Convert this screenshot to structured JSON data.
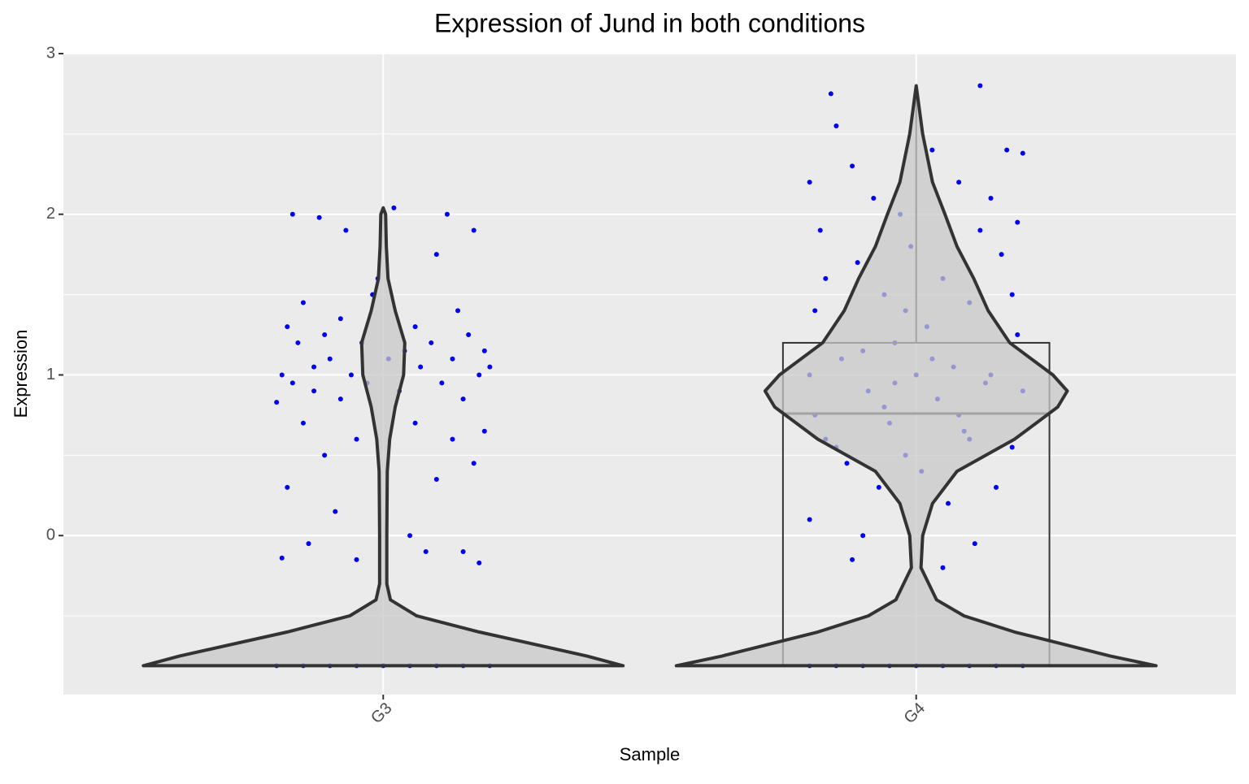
{
  "chart_data": {
    "type": "violin",
    "title": "Expression of Jund in both conditions",
    "x_label": "Sample",
    "y_label": "Expression",
    "categories": [
      "G3",
      "G4"
    ],
    "ylim": [
      -0.99,
      3.0
    ],
    "yticks": [
      0,
      1,
      2,
      3
    ],
    "minor_yticks": [
      -0.5,
      0.5,
      1.5,
      2.5
    ],
    "grid": true,
    "point_color": "#0000ee",
    "violin_fill": "#c8c8c8",
    "violin_stroke": "#333333",
    "violins": [
      {
        "y": [
          -0.81,
          -0.75,
          -0.6,
          -0.5,
          -0.4,
          -0.3,
          0,
          0.4,
          0.6,
          0.8,
          1.0,
          1.2,
          1.4,
          1.6,
          1.8,
          2.0,
          2.04
        ],
        "width": [
          1,
          0.85,
          0.4,
          0.14,
          0.03,
          0.015,
          0.015,
          0.017,
          0.027,
          0.05,
          0.085,
          0.09,
          0.05,
          0.02,
          0.013,
          0.01,
          0
        ]
      },
      {
        "y": [
          -0.81,
          -0.75,
          -0.6,
          -0.5,
          -0.4,
          -0.2,
          0,
          0.2,
          0.4,
          0.6,
          0.8,
          0.9,
          1.0,
          1.2,
          1.4,
          1.6,
          1.8,
          2.0,
          2.2,
          2.5,
          2.8
        ],
        "width": [
          1,
          0.81,
          0.41,
          0.2,
          0.085,
          0.02,
          0.027,
          0.068,
          0.17,
          0.41,
          0.59,
          0.63,
          0.57,
          0.39,
          0.3,
          0.24,
          0.17,
          0.12,
          0.068,
          0.027,
          0
        ]
      }
    ],
    "boxes": [
      {
        "q1": -0.81,
        "median": -0.81,
        "q3": -0.81,
        "whisker_high": null
      },
      {
        "q1": -0.81,
        "median": 0.76,
        "q3": 1.2,
        "whisker_high": 2.78
      }
    ],
    "points": [
      {
        "dx": [
          -0.2,
          -0.19,
          -0.19,
          -0.18,
          -0.18,
          -0.17,
          -0.17,
          -0.16,
          -0.15,
          -0.15,
          -0.14,
          -0.13,
          -0.13,
          -0.12,
          -0.11,
          -0.11,
          -0.1,
          -0.09,
          -0.08,
          -0.08,
          -0.07,
          -0.06,
          -0.05,
          -0.05,
          -0.04,
          -0.03,
          -0.02,
          0.02,
          0.03,
          0.04,
          0.05,
          0.06,
          0.06,
          0.07,
          0.08,
          0.09,
          0.1,
          0.1,
          0.11,
          0.12,
          0.13,
          0.13,
          0.14,
          0.15,
          0.15,
          0.16,
          0.17,
          0.17,
          0.18,
          0.19,
          0.19,
          0.2,
          0.18,
          -0.01,
          0.01,
          -0.2,
          -0.15,
          -0.1,
          -0.05,
          0,
          0.05,
          0.1,
          0.15,
          0.2
        ],
        "y": [
          0.83,
          1.0,
          -0.14,
          1.3,
          0.3,
          2.0,
          0.95,
          1.2,
          0.7,
          1.45,
          -0.05,
          1.05,
          0.9,
          1.98,
          1.25,
          0.5,
          1.1,
          0.15,
          0.85,
          1.35,
          1.9,
          1.0,
          0.6,
          -0.15,
          1.2,
          0.95,
          1.5,
          2.04,
          0.9,
          1.15,
          0.0,
          1.3,
          0.7,
          1.05,
          -0.1,
          1.2,
          0.35,
          1.75,
          0.95,
          2.0,
          1.1,
          0.6,
          1.4,
          -0.1,
          0.85,
          1.25,
          1.9,
          0.45,
          1.0,
          1.15,
          0.65,
          1.05,
          -0.17,
          1.6,
          1.1,
          -0.81,
          -0.81,
          -0.81,
          -0.81,
          -0.81,
          -0.81,
          -0.81,
          -0.81,
          -0.81
        ]
      },
      {
        "dx": [
          -0.2,
          -0.19,
          -0.2,
          -0.18,
          -0.17,
          -0.16,
          -0.15,
          -0.14,
          -0.13,
          -0.12,
          -0.11,
          -0.1,
          -0.09,
          -0.08,
          -0.07,
          -0.06,
          -0.05,
          -0.04,
          -0.03,
          -0.02,
          -0.01,
          0,
          0.01,
          0.02,
          0.03,
          0.04,
          0.05,
          0.06,
          0.07,
          0.08,
          0.09,
          0.1,
          0.11,
          0.12,
          0.13,
          0.14,
          0.15,
          0.16,
          0.17,
          0.18,
          0.19,
          0.2,
          0.2,
          -0.2,
          -0.19,
          0.19,
          0.18,
          -0.15,
          0.12,
          -0.12,
          0.05,
          -0.06,
          0.03,
          -0.02,
          0.08,
          -0.1,
          0.14,
          -0.17,
          0.1,
          -0.04,
          -0.2,
          -0.15,
          -0.1,
          -0.05,
          0,
          0.05,
          0.1,
          0.15,
          0.2
        ],
        "y": [
          0.1,
          1.4,
          2.2,
          1.9,
          0.6,
          2.75,
          2.55,
          1.1,
          0.45,
          2.3,
          1.7,
          0.0,
          0.9,
          2.1,
          0.3,
          1.5,
          0.7,
          1.2,
          2.0,
          0.5,
          1.8,
          1.0,
          0.4,
          1.3,
          2.4,
          0.85,
          1.6,
          0.2,
          1.05,
          2.2,
          0.65,
          1.45,
          -0.05,
          1.9,
          0.95,
          2.1,
          0.3,
          1.75,
          2.4,
          0.55,
          1.25,
          2.38,
          0.9,
          1.0,
          0.75,
          1.95,
          1.5,
          0.55,
          2.8,
          -0.15,
          -0.2,
          0.8,
          1.1,
          1.4,
          0.75,
          1.15,
          1.0,
          1.6,
          0.6,
          0.95,
          -0.81,
          -0.81,
          -0.81,
          -0.81,
          -0.81,
          -0.81,
          -0.81,
          -0.81,
          -0.81
        ]
      }
    ]
  }
}
